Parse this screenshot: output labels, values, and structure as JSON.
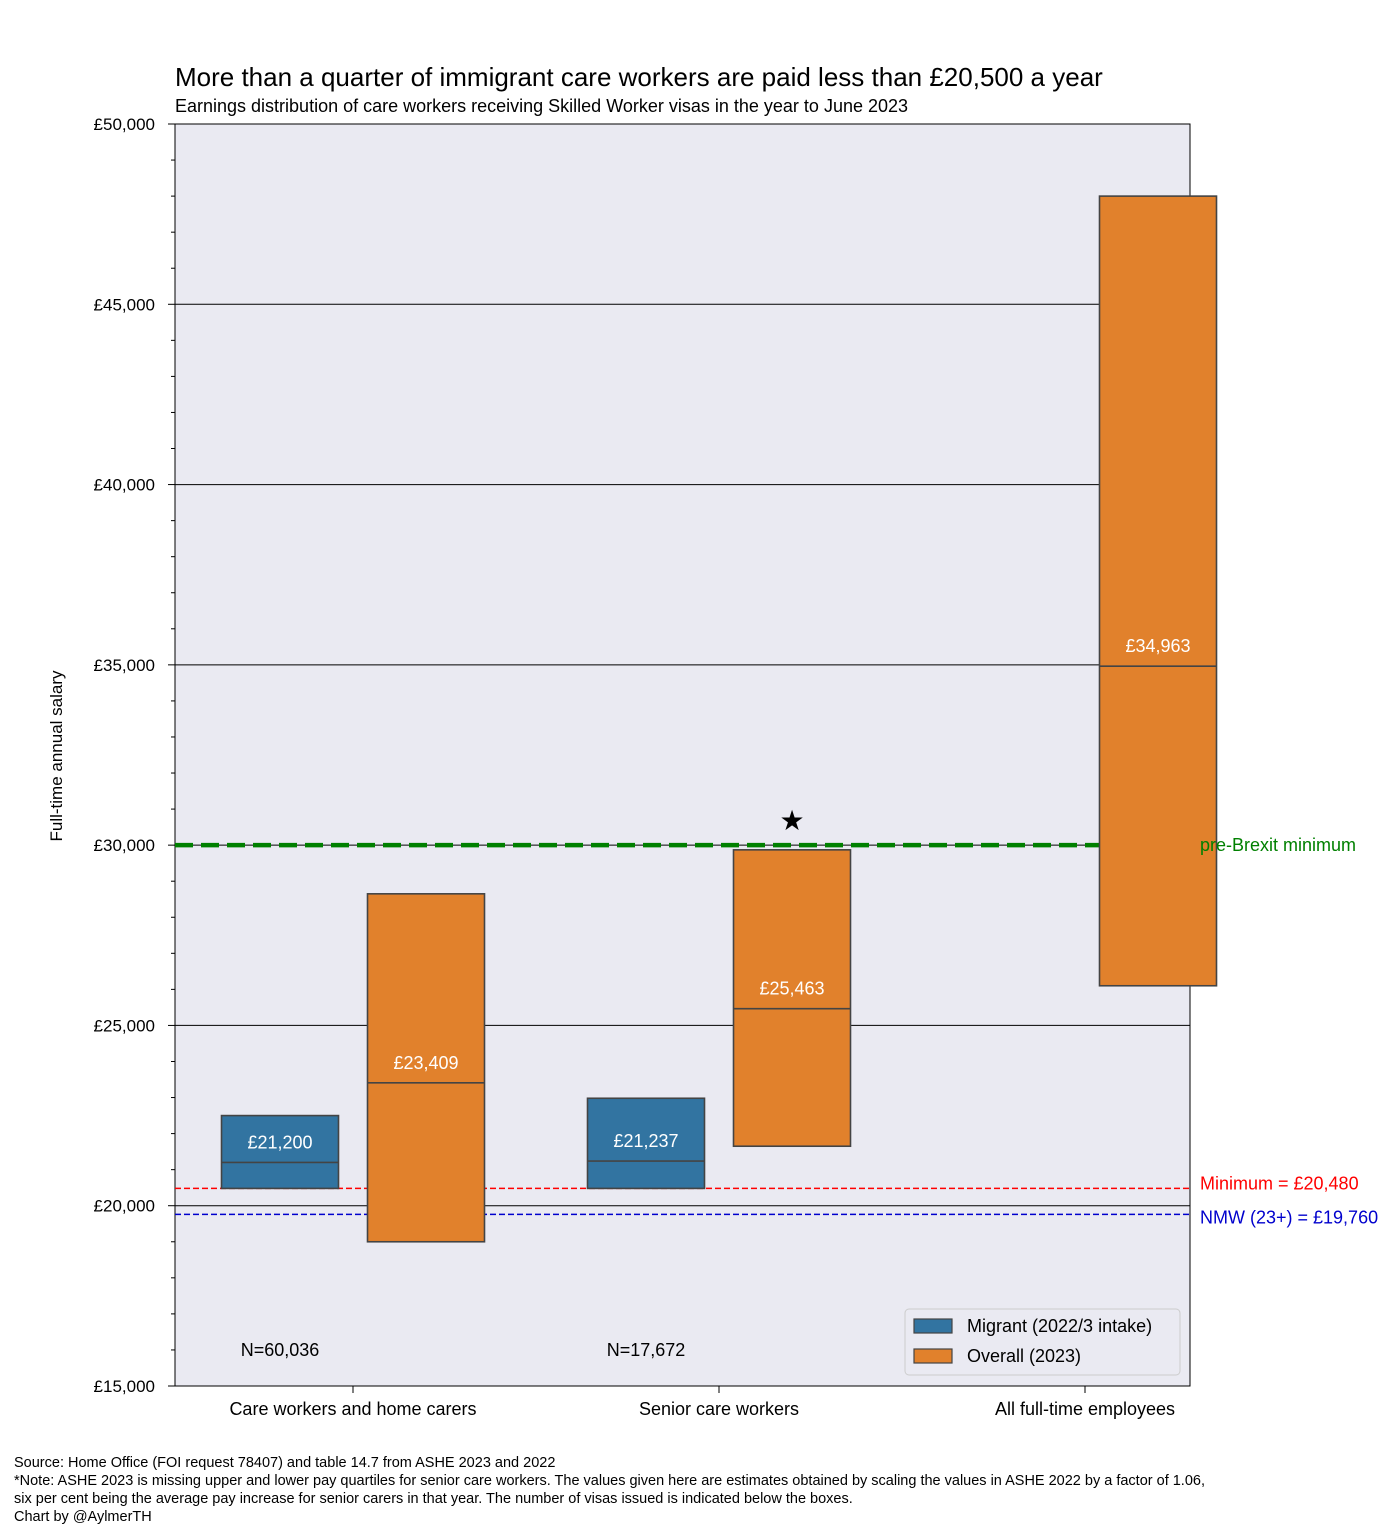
{
  "chart_data": {
    "type": "box",
    "title": "More than a quarter of immigrant care workers are paid less than £20,500 a year",
    "subtitle": "Earnings distribution of care workers receiving Skilled Worker visas in the year to June 2023",
    "ylabel": "Full-time annual salary",
    "xlabel": "",
    "ylim": [
      15000,
      50000
    ],
    "y_ticks": [
      15000,
      20000,
      25000,
      30000,
      35000,
      40000,
      45000,
      50000
    ],
    "y_tick_labels": [
      "£15,000",
      "£20,000",
      "£25,000",
      "£30,000",
      "£35,000",
      "£40,000",
      "£45,000",
      "£50,000"
    ],
    "grid": "horizontal",
    "categories": [
      "Care workers and home carers",
      "Senior care workers",
      "All full-time employees"
    ],
    "series": [
      {
        "name": "Migrant (2022/3 intake)",
        "color": "#3274a1",
        "boxes": [
          {
            "category": "Care workers and home carers",
            "q1": 20480,
            "median": 21200,
            "q3": 22500,
            "label": "£21,200",
            "n_label": "N=60,036"
          },
          {
            "category": "Senior care workers",
            "q1": 20480,
            "median": 21237,
            "q3": 22980,
            "label": "£21,237",
            "n_label": "N=17,672"
          }
        ]
      },
      {
        "name": "Overall (2023)",
        "color": "#e1812c",
        "boxes": [
          {
            "category": "Care workers and home carers",
            "q1": 19000,
            "median": 23409,
            "q3": 28650,
            "label": "£23,409"
          },
          {
            "category": "Senior care workers",
            "q1": 21650,
            "median": 25463,
            "q3": 29870,
            "label": "£25,463",
            "star": true
          },
          {
            "category": "All full-time employees",
            "q1": 26100,
            "median": 34963,
            "q3": 48000,
            "label": "£34,963"
          }
        ]
      }
    ],
    "reference_lines": [
      {
        "value": 30000,
        "label": "pre-Brexit minimum",
        "color": "#008000",
        "style": "thick-dashed"
      },
      {
        "value": 20480,
        "label": "Minimum = £20,480",
        "color": "#ff0000",
        "style": "dashed"
      },
      {
        "value": 19760,
        "label": "NMW (23+) = £19,760",
        "color": "#0000cd",
        "style": "dashed"
      }
    ],
    "legend": {
      "position": "bottom-right",
      "entries": [
        "Migrant (2022/3 intake)",
        "Overall (2023)"
      ]
    },
    "star_symbol": "★"
  },
  "footer": {
    "source": "Source: Home Office (FOI request 78407) and table 14.7 from ASHE 2023 and 2022",
    "note_line1": "*Note: ASHE 2023 is missing upper and lower pay quartiles for senior care workers. The values given here are estimates obtained by scaling the values in ASHE 2022 by a factor of 1.06,",
    "note_line2": "six per cent being the average pay increase for senior carers in that year. The number of visas issued is indicated below the boxes.",
    "credit": "Chart by @AylmerTH"
  }
}
